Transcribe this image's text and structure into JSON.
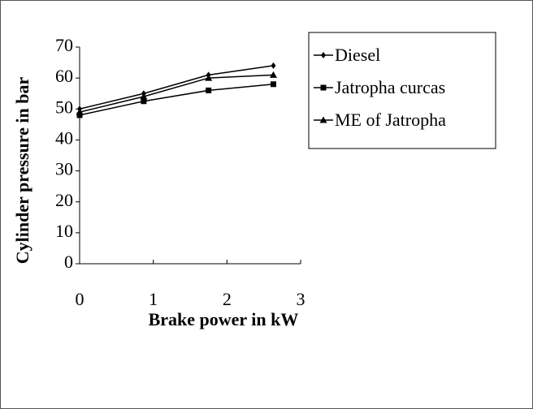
{
  "chart_data": {
    "type": "line",
    "xlabel": "Brake power in kW",
    "ylabel": "Cylinder pressure in bar",
    "x": [
      0,
      0.87,
      1.75,
      2.63
    ],
    "series": [
      {
        "name": "Diesel",
        "color": "#000000",
        "marker": "diamond",
        "values": [
          50,
          55,
          61,
          64
        ]
      },
      {
        "name": "Jatropha curcas",
        "color": "#000000",
        "marker": "square",
        "values": [
          48,
          52.5,
          56,
          58
        ]
      },
      {
        "name": "ME of Jatropha",
        "color": "#000000",
        "marker": "triangle",
        "values": [
          49,
          54,
          60,
          61
        ]
      }
    ],
    "xlim": [
      0,
      3
    ],
    "xticks": [
      0,
      1,
      2,
      3
    ],
    "ylim": [
      0,
      70
    ],
    "yticks": [
      0,
      10,
      20,
      30,
      40,
      50,
      60,
      70
    ],
    "legend": "upper right"
  }
}
